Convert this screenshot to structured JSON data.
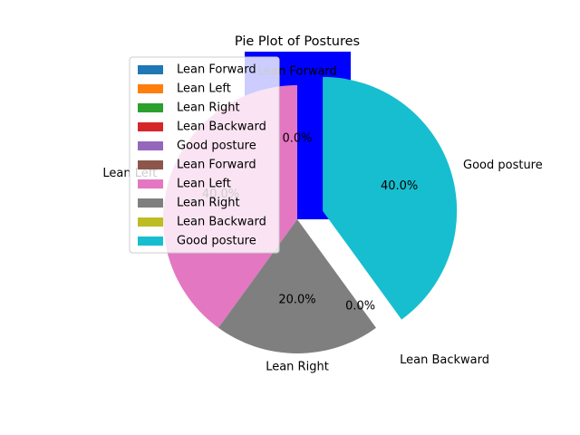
{
  "chart_data": {
    "type": "pie",
    "title": "Pie Plot of Postures",
    "slices": [
      {
        "label": "Lean Forward",
        "value": 0.0,
        "pct_label": "0.0%",
        "color": "#0000ff",
        "exploded": false
      },
      {
        "label": "Lean Left",
        "value": 40.0,
        "pct_label": "40.0%",
        "color": "#e377c2",
        "exploded": false
      },
      {
        "label": "Lean Right",
        "value": 20.0,
        "pct_label": "20.0%",
        "color": "#7f7f7f",
        "exploded": false
      },
      {
        "label": "Lean Backward",
        "value": 0.0,
        "pct_label": "0.0%",
        "color": "#bcbd22",
        "exploded": true
      },
      {
        "label": "Good posture",
        "value": 40.0,
        "pct_label": "40.0%",
        "color": "#17becf",
        "exploded": true
      }
    ],
    "legend": {
      "placement": "upper-left",
      "entries": [
        {
          "label": "Lean Forward",
          "color": "#1f77b4"
        },
        {
          "label": "Lean Left",
          "color": "#ff7f0e"
        },
        {
          "label": "Lean Right",
          "color": "#2ca02c"
        },
        {
          "label": "Lean Backward",
          "color": "#d62728"
        },
        {
          "label": "Good posture",
          "color": "#9467bd"
        },
        {
          "label": "Lean Forward",
          "color": "#8c564b"
        },
        {
          "label": "Lean Left",
          "color": "#e377c2"
        },
        {
          "label": "Lean Right",
          "color": "#7f7f7f"
        },
        {
          "label": "Lean Backward",
          "color": "#bcbd22"
        },
        {
          "label": "Good posture",
          "color": "#17becf"
        }
      ]
    }
  }
}
